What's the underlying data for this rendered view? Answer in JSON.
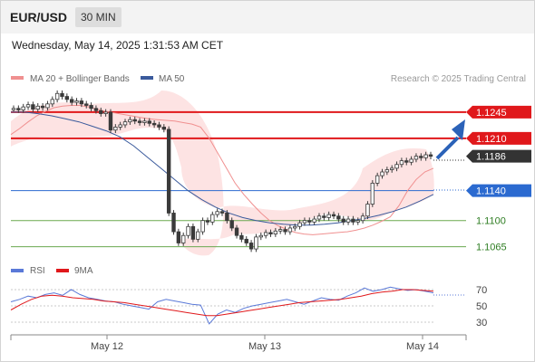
{
  "header": {
    "pair": "EUR/USD",
    "timeframe": "30 MIN",
    "datetime": "Wednesday, May 14, 2025 1:31:53 AM CET"
  },
  "legend": {
    "bollinger": "MA 20 + Bollinger Bands",
    "ma50": "MA 50",
    "credit": "Research © 2025 Trading Central"
  },
  "rsi_legend": {
    "rsi": "RSI",
    "ma": "9MA"
  },
  "colors": {
    "resistance": "#e0181b",
    "support_blue": "#2b6ad0",
    "support_green": "#6aa84f",
    "last": "#333333",
    "bollinger_fill": "#fde3e3",
    "ma20": "#f09090",
    "ma50": "#3a5a9c",
    "rsi": "#5a79d8",
    "rsi_ma": "#e0181b",
    "up_candle": "#3a3a3a",
    "down_candle": "#3a3a3a",
    "arrow": "#2b62b8"
  },
  "chart_data": {
    "type": "candlestick",
    "price_axis": {
      "min": 1.105,
      "max": 1.128
    },
    "x_axis": {
      "ticks": [
        "May 12",
        "May 13",
        "May 14"
      ]
    },
    "levels": [
      {
        "label": "1.1245",
        "value": 1.1245,
        "kind": "resistance"
      },
      {
        "label": "1.1210",
        "value": 1.121,
        "kind": "resistance"
      },
      {
        "label": "1.1186",
        "value": 1.1186,
        "kind": "last"
      },
      {
        "label": "1.1140",
        "value": 1.114,
        "kind": "pivot"
      },
      {
        "label": "1.1100",
        "value": 1.11,
        "kind": "support"
      },
      {
        "label": "1.1065",
        "value": 1.1065,
        "kind": "support"
      }
    ],
    "closes": [
      1.125,
      1.1248,
      1.1252,
      1.1255,
      1.1249,
      1.1253,
      1.1251,
      1.1256,
      1.1262,
      1.127,
      1.1266,
      1.1262,
      1.1258,
      1.126,
      1.1256,
      1.1254,
      1.125,
      1.1247,
      1.1243,
      1.1245,
      1.1221,
      1.1225,
      1.1228,
      1.1232,
      1.1235,
      1.1233,
      1.1231,
      1.1233,
      1.123,
      1.1228,
      1.1225,
      1.1222,
      1.111,
      1.1085,
      1.107,
      1.108,
      1.1092,
      1.1075,
      1.1085,
      1.11,
      1.1098,
      1.1108,
      1.1112,
      1.111,
      1.11,
      1.109,
      1.108,
      1.1075,
      1.107,
      1.1062,
      1.1078,
      1.108,
      1.1084,
      1.1082,
      1.1086,
      1.1088,
      1.1085,
      1.109,
      1.1092,
      1.1097,
      1.11,
      1.1098,
      1.1102,
      1.1106,
      1.1104,
      1.1108,
      1.1106,
      1.1102,
      1.1098,
      1.1102,
      1.1098,
      1.11,
      1.1106,
      1.1122,
      1.115,
      1.116,
      1.1165,
      1.1168,
      1.117,
      1.1175,
      1.118,
      1.1178,
      1.1182,
      1.1186,
      1.1184,
      1.1188,
      1.1186
    ],
    "ma20": [
      1.1215,
      1.1223,
      1.1232,
      1.124,
      1.1246,
      1.1251,
      1.1253,
      1.1254,
      1.1254,
      1.1252,
      1.1249,
      1.1246,
      1.1244,
      1.1242,
      1.124,
      1.1238,
      1.1236,
      1.1235,
      1.1234,
      1.1233,
      1.1231,
      1.1229,
      1.1225,
      1.121,
      1.119,
      1.117,
      1.115,
      1.1135,
      1.1122,
      1.111,
      1.11,
      1.1093,
      1.1088,
      1.1084,
      1.1082,
      1.1081,
      1.1082,
      1.1083,
      1.1084,
      1.1085,
      1.1087,
      1.109,
      1.1094,
      1.1099,
      1.1105,
      1.112,
      1.114,
      1.1155,
      1.1165,
      1.117
    ],
    "ma50": [
      1.1245,
      1.1245,
      1.1243,
      1.124,
      1.1236,
      1.1232,
      1.1226,
      1.122,
      1.1212,
      1.12,
      1.1185,
      1.117,
      1.1155,
      1.114,
      1.1128,
      1.1118,
      1.111,
      1.1104,
      1.11,
      1.1097,
      1.1095,
      1.1094,
      1.1094,
      1.1095,
      1.1097,
      1.11,
      1.1103,
      1.1107,
      1.1112,
      1.1118,
      1.1126,
      1.1135
    ],
    "rsi": {
      "ticks": [
        "70",
        "50",
        "30"
      ],
      "values": [
        55,
        58,
        62,
        60,
        64,
        66,
        63,
        70,
        64,
        60,
        58,
        56,
        55,
        52,
        50,
        48,
        46,
        55,
        58,
        56,
        54,
        52,
        51,
        28,
        40,
        45,
        42,
        47,
        50,
        52,
        54,
        56,
        58,
        55,
        52,
        56,
        60,
        58,
        57,
        62,
        66,
        72,
        68,
        70,
        73,
        71,
        69,
        70,
        68,
        66
      ],
      "ma9": [
        45,
        52,
        58,
        62,
        63,
        62,
        60,
        59,
        58,
        56,
        55,
        54,
        52,
        50,
        48,
        46,
        44,
        42,
        40,
        38,
        38,
        40,
        42,
        44,
        46,
        48,
        50,
        52,
        54,
        55,
        56,
        57,
        58,
        60,
        62,
        65,
        67,
        68,
        70,
        70,
        69,
        68
      ]
    }
  }
}
